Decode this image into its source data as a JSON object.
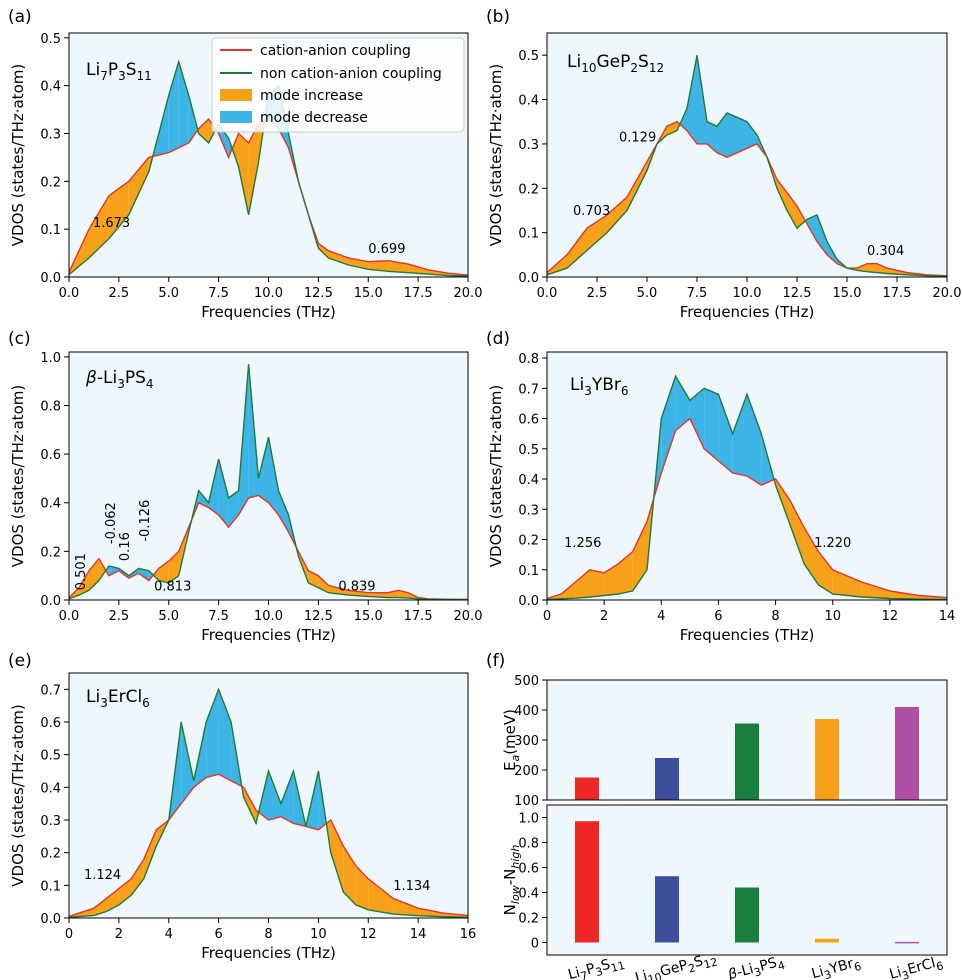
{
  "colors": {
    "cation_line": "#e8322b",
    "non_cation_line": "#1f7a3a",
    "increase_fill": "#f7a11a",
    "decrease_fill": "#3cb4e6",
    "plot_bg": "#eef7fb",
    "bar_li7p3s11": "#ee2626",
    "bar_li10gep2s12": "#3d4f9c",
    "bar_beta_li3ps4": "#1a7f3c",
    "bar_li3ybr6": "#f7a11a",
    "bar_li3ercl6": "#b04fa6"
  },
  "legend": {
    "cation": "cation-anion coupling",
    "non_cation": "non cation-anion coupling",
    "increase": "mode increase",
    "decrease": "mode decrease"
  },
  "chart_data": [
    {
      "type": "area",
      "panel": "(a)",
      "material": "Li7P3S11",
      "xlabel": "Frequencies (THz)",
      "ylabel": "VDOS (states/THz·atom)",
      "xlim": [
        0,
        20
      ],
      "ylim": [
        0,
        0.51
      ],
      "xticks": [
        "0.0",
        "2.5",
        "5.0",
        "7.5",
        "10.0",
        "12.5",
        "15.0",
        "17.5",
        "20.0"
      ],
      "yticks": [
        "0.0",
        "0.1",
        "0.2",
        "0.3",
        "0.4",
        "0.5"
      ],
      "annotations": [
        "1.673",
        "0.699"
      ],
      "series": [
        {
          "name": "cation-anion coupling",
          "x": [
            0,
            1,
            2,
            3,
            4,
            5,
            5.5,
            6,
            6.5,
            7,
            7.5,
            8,
            8.5,
            9,
            9.5,
            10,
            10.5,
            11,
            11.5,
            12,
            12.5,
            13,
            14,
            15,
            16,
            17,
            18,
            19,
            20
          ],
          "y": [
            0.01,
            0.1,
            0.17,
            0.2,
            0.25,
            0.26,
            0.27,
            0.28,
            0.31,
            0.33,
            0.3,
            0.25,
            0.3,
            0.28,
            0.32,
            0.33,
            0.31,
            0.27,
            0.2,
            0.13,
            0.07,
            0.055,
            0.04,
            0.032,
            0.034,
            0.027,
            0.015,
            0.008,
            0.004
          ]
        },
        {
          "name": "non cation-anion coupling",
          "x": [
            0,
            1,
            2,
            3,
            4,
            5,
            5.5,
            6,
            6.5,
            7,
            7.5,
            8,
            8.5,
            9,
            9.5,
            10,
            10.5,
            11,
            11.5,
            12,
            12.5,
            13,
            14,
            15,
            16,
            17,
            18,
            19,
            20
          ],
          "y": [
            0.005,
            0.04,
            0.08,
            0.13,
            0.22,
            0.38,
            0.45,
            0.38,
            0.3,
            0.28,
            0.32,
            0.29,
            0.23,
            0.13,
            0.24,
            0.38,
            0.4,
            0.3,
            0.2,
            0.13,
            0.06,
            0.04,
            0.025,
            0.016,
            0.012,
            0.009,
            0.006,
            0.003,
            0.002
          ]
        }
      ]
    },
    {
      "type": "area",
      "panel": "(b)",
      "material": "Li10GeP2S12",
      "xlabel": "Frequencies (THz)",
      "ylabel": "VDOS (states/THz·atom)",
      "xlim": [
        0,
        20
      ],
      "ylim": [
        0,
        0.55
      ],
      "xticks": [
        "0.0",
        "2.5",
        "5.0",
        "7.5",
        "10.0",
        "12.5",
        "15.0",
        "17.5",
        "20.0"
      ],
      "yticks": [
        "0.0",
        "0.1",
        "0.2",
        "0.3",
        "0.4",
        "0.5"
      ],
      "annotations": [
        "0.703",
        "0.129",
        "0.304"
      ],
      "series": [
        {
          "name": "cation-anion coupling",
          "x": [
            0,
            1,
            2,
            3,
            4,
            5,
            5.5,
            6,
            6.5,
            7,
            7.5,
            8,
            8.5,
            9,
            9.5,
            10,
            10.5,
            11,
            11.5,
            12,
            12.5,
            13,
            13.5,
            14,
            14.5,
            15,
            15.5,
            16,
            16.5,
            17,
            18,
            19,
            20
          ],
          "y": [
            0.01,
            0.05,
            0.11,
            0.14,
            0.18,
            0.26,
            0.3,
            0.34,
            0.35,
            0.33,
            0.3,
            0.3,
            0.28,
            0.27,
            0.28,
            0.29,
            0.3,
            0.27,
            0.22,
            0.19,
            0.16,
            0.12,
            0.08,
            0.05,
            0.03,
            0.02,
            0.02,
            0.03,
            0.03,
            0.02,
            0.01,
            0.005,
            0.003
          ]
        },
        {
          "name": "non cation-anion coupling",
          "x": [
            0,
            1,
            2,
            3,
            4,
            5,
            5.5,
            6,
            6.5,
            7,
            7.5,
            8,
            8.5,
            9,
            9.5,
            10,
            10.5,
            11,
            11.5,
            12,
            12.5,
            13,
            13.5,
            14,
            14.5,
            15,
            15.5,
            16,
            16.5,
            17,
            18,
            19,
            20
          ],
          "y": [
            0.005,
            0.02,
            0.06,
            0.1,
            0.15,
            0.24,
            0.3,
            0.32,
            0.33,
            0.38,
            0.5,
            0.35,
            0.34,
            0.37,
            0.36,
            0.35,
            0.32,
            0.27,
            0.2,
            0.15,
            0.11,
            0.13,
            0.14,
            0.08,
            0.04,
            0.02,
            0.015,
            0.012,
            0.01,
            0.008,
            0.005,
            0.003,
            0.002
          ]
        }
      ]
    },
    {
      "type": "area",
      "panel": "(c)",
      "material": "β-Li3PS4",
      "xlabel": "Frequencies (THz)",
      "ylabel": "VDOS (states/THz·atom)",
      "xlim": [
        0,
        20
      ],
      "ylim": [
        0,
        1.02
      ],
      "xticks": [
        "0.0",
        "2.5",
        "5.0",
        "7.5",
        "10.0",
        "12.5",
        "15.0",
        "17.5",
        "20.0"
      ],
      "yticks": [
        "0.0",
        "0.2",
        "0.4",
        "0.6",
        "0.8",
        "1.0"
      ],
      "annotations": [
        "0.501",
        "-0.062",
        "0.16",
        "-0.126",
        "0.813",
        "0.839"
      ],
      "series": [
        {
          "name": "cation-anion coupling",
          "x": [
            0,
            0.5,
            1,
            1.5,
            2,
            2.5,
            3,
            3.5,
            4,
            4.5,
            5,
            5.5,
            6,
            6.5,
            7,
            7.5,
            8,
            8.5,
            9,
            9.5,
            10,
            10.5,
            11,
            11.5,
            12,
            12.5,
            13,
            14,
            15,
            16,
            16.5,
            17,
            17.5,
            18,
            19,
            20
          ],
          "y": [
            0.01,
            0.05,
            0.12,
            0.17,
            0.1,
            0.12,
            0.09,
            0.11,
            0.08,
            0.13,
            0.16,
            0.2,
            0.3,
            0.4,
            0.38,
            0.35,
            0.3,
            0.35,
            0.42,
            0.43,
            0.4,
            0.35,
            0.28,
            0.2,
            0.12,
            0.1,
            0.06,
            0.04,
            0.03,
            0.03,
            0.04,
            0.03,
            0.01,
            0.005,
            0.003,
            0.002
          ]
        },
        {
          "name": "non cation-anion coupling",
          "x": [
            0,
            0.5,
            1,
            1.5,
            2,
            2.5,
            3,
            3.5,
            4,
            4.5,
            5,
            5.5,
            6,
            6.5,
            7,
            7.5,
            8,
            8.5,
            9,
            9.5,
            10,
            10.5,
            11,
            11.5,
            12,
            12.5,
            13,
            14,
            15,
            16,
            16.5,
            17,
            17.5,
            18,
            19,
            20
          ],
          "y": [
            0.005,
            0.02,
            0.04,
            0.08,
            0.14,
            0.13,
            0.1,
            0.13,
            0.12,
            0.08,
            0.07,
            0.1,
            0.28,
            0.45,
            0.4,
            0.58,
            0.42,
            0.45,
            0.97,
            0.5,
            0.67,
            0.45,
            0.35,
            0.18,
            0.07,
            0.05,
            0.03,
            0.02,
            0.015,
            0.01,
            0.01,
            0.008,
            0.005,
            0.003,
            0.002,
            0.001
          ]
        }
      ]
    },
    {
      "type": "area",
      "panel": "(d)",
      "material": "Li3YBr6",
      "xlabel": "Frequencies (THz)",
      "ylabel": "VDOS (states/THz·atom)",
      "xlim": [
        0,
        14
      ],
      "ylim": [
        0,
        0.82
      ],
      "xticks": [
        "0",
        "2",
        "4",
        "6",
        "8",
        "10",
        "12",
        "14"
      ],
      "yticks": [
        "0.0",
        "0.1",
        "0.2",
        "0.3",
        "0.4",
        "0.5",
        "0.6",
        "0.7",
        "0.8"
      ],
      "annotations": [
        "1.256",
        "1.220"
      ],
      "series": [
        {
          "name": "cation-anion coupling",
          "x": [
            0,
            0.5,
            1,
            1.5,
            2,
            2.5,
            3,
            3.5,
            4,
            4.5,
            5,
            5.5,
            6,
            6.5,
            7,
            7.5,
            8,
            8.5,
            9,
            9.5,
            10,
            11,
            12,
            13,
            14
          ],
          "y": [
            0.005,
            0.02,
            0.06,
            0.1,
            0.09,
            0.12,
            0.16,
            0.26,
            0.42,
            0.56,
            0.6,
            0.5,
            0.46,
            0.42,
            0.41,
            0.38,
            0.4,
            0.33,
            0.24,
            0.16,
            0.1,
            0.06,
            0.03,
            0.015,
            0.008
          ]
        },
        {
          "name": "non cation-anion coupling",
          "x": [
            0,
            0.5,
            1,
            1.5,
            2,
            2.5,
            3,
            3.5,
            4,
            4.5,
            5,
            5.5,
            6,
            6.5,
            7,
            7.5,
            8,
            8.5,
            9,
            9.5,
            10,
            11,
            12,
            13,
            14
          ],
          "y": [
            0.002,
            0.004,
            0.006,
            0.01,
            0.015,
            0.02,
            0.03,
            0.1,
            0.6,
            0.74,
            0.66,
            0.7,
            0.68,
            0.55,
            0.68,
            0.55,
            0.38,
            0.25,
            0.12,
            0.05,
            0.02,
            0.01,
            0.005,
            0.003,
            0.002
          ]
        }
      ]
    },
    {
      "type": "area",
      "panel": "(e)",
      "material": "Li3ErCl6",
      "xlabel": "Frequencies (THz)",
      "ylabel": "VDOS (states/THz·atom)",
      "xlim": [
        0,
        16
      ],
      "ylim": [
        0,
        0.75
      ],
      "xticks": [
        "0",
        "2",
        "4",
        "6",
        "8",
        "10",
        "12",
        "14",
        "16"
      ],
      "yticks": [
        "0.0",
        "0.1",
        "0.2",
        "0.3",
        "0.4",
        "0.5",
        "0.6",
        "0.7"
      ],
      "annotations": [
        "1.124",
        "1.134"
      ],
      "series": [
        {
          "name": "cation-anion coupling",
          "x": [
            0,
            1,
            1.5,
            2,
            2.5,
            3,
            3.5,
            4,
            4.5,
            5,
            5.5,
            6,
            6.5,
            7,
            7.5,
            8,
            8.5,
            9,
            9.5,
            10,
            10.5,
            11,
            11.5,
            12,
            13,
            14,
            15,
            16
          ],
          "y": [
            0.005,
            0.03,
            0.06,
            0.09,
            0.12,
            0.18,
            0.27,
            0.3,
            0.35,
            0.4,
            0.43,
            0.44,
            0.42,
            0.4,
            0.33,
            0.3,
            0.31,
            0.29,
            0.28,
            0.27,
            0.3,
            0.22,
            0.16,
            0.12,
            0.06,
            0.03,
            0.015,
            0.008
          ]
        },
        {
          "name": "non cation-anion coupling",
          "x": [
            0,
            1,
            1.5,
            2,
            2.5,
            3,
            3.5,
            4,
            4.5,
            5,
            5.5,
            6,
            6.5,
            7,
            7.5,
            8,
            8.5,
            9,
            9.5,
            10,
            10.5,
            11,
            11.5,
            12,
            13,
            14,
            15,
            16
          ],
          "y": [
            0.002,
            0.008,
            0.02,
            0.04,
            0.07,
            0.12,
            0.22,
            0.3,
            0.6,
            0.42,
            0.6,
            0.7,
            0.6,
            0.37,
            0.29,
            0.45,
            0.35,
            0.45,
            0.28,
            0.45,
            0.2,
            0.08,
            0.04,
            0.025,
            0.012,
            0.007,
            0.004,
            0.002
          ]
        }
      ]
    },
    {
      "type": "bar",
      "panel": "(f) upper",
      "categories": [
        "Li7P3S11",
        "Li10GeP2S12",
        "β-Li3PS4",
        "Li3YBr6",
        "Li3ErCl6"
      ],
      "values": [
        175,
        240,
        355,
        370,
        410
      ],
      "ylabel": "Ea(meV)",
      "ylim": [
        100,
        500
      ],
      "yticks": [
        "100",
        "200",
        "300",
        "400",
        "500"
      ]
    },
    {
      "type": "bar",
      "panel": "(f) lower",
      "categories": [
        "Li7P3S11",
        "Li10GeP2S12",
        "β-Li3PS4",
        "Li3YBr6",
        "Li3ErCl6"
      ],
      "values": [
        0.97,
        0.53,
        0.44,
        0.03,
        0.005
      ],
      "ylabel": "Nlow-Nhigh",
      "ylim": [
        -0.1,
        1.1
      ],
      "yticks": [
        "0",
        "0.2",
        "0.4",
        "0.6",
        "0.8",
        "1.0"
      ]
    }
  ],
  "panel_labels": [
    "(a)",
    "(b)",
    "(c)",
    "(d)",
    "(e)",
    "(f)"
  ]
}
